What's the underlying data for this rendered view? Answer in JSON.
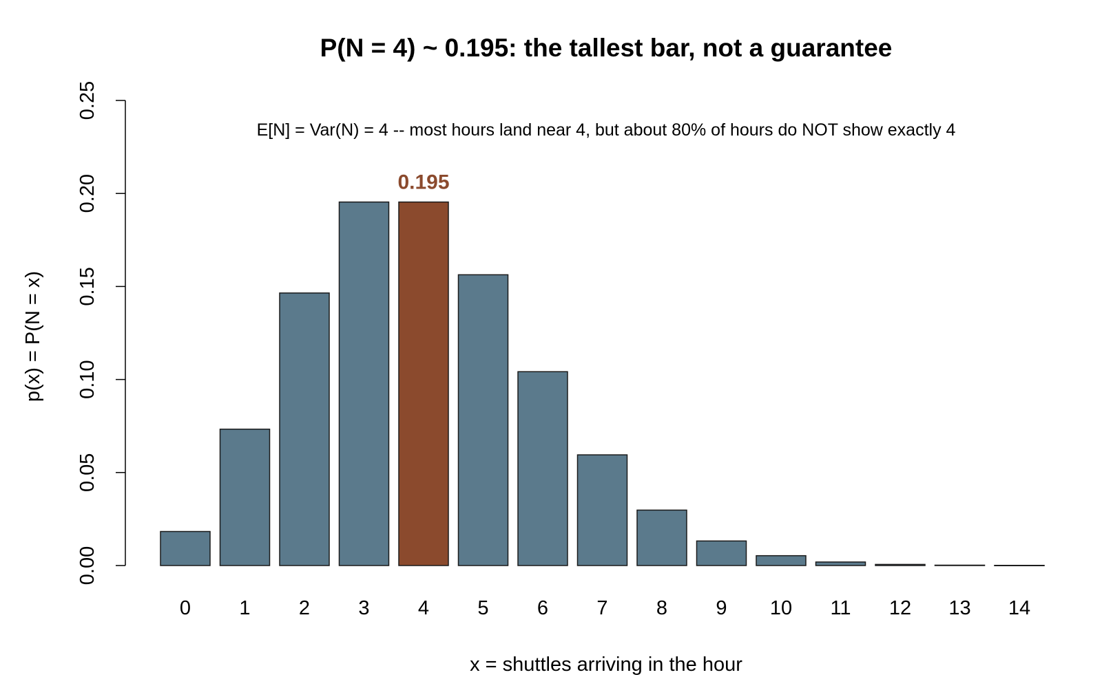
{
  "chart_data": {
    "type": "bar",
    "title": "P(N = 4) ~ 0.195: the tallest bar, not a guarantee",
    "subtitle": "E[N] = Var(N) = 4 -- most hours land near 4, but about 80% of hours do NOT show exactly 4",
    "xlabel": "x = shuttles arriving in the hour",
    "ylabel": "p(x) = P(N = x)",
    "categories": [
      "0",
      "1",
      "2",
      "3",
      "4",
      "5",
      "6",
      "7",
      "8",
      "9",
      "10",
      "11",
      "12",
      "13",
      "14"
    ],
    "values": [
      0.0183,
      0.0733,
      0.1465,
      0.1954,
      0.1954,
      0.1563,
      0.1042,
      0.0595,
      0.0298,
      0.0132,
      0.0053,
      0.0019,
      0.0006,
      0.0002,
      0.0001
    ],
    "ylim": [
      0,
      0.25
    ],
    "yticks": [
      "0.00",
      "0.05",
      "0.10",
      "0.15",
      "0.20",
      "0.25"
    ],
    "highlight_index": 4,
    "highlight_label": "0.195",
    "colors": {
      "bar": "#5b7a8c",
      "highlight": "#8b4a2d",
      "highlight_label": "#8b4a2d",
      "outline": "#1a1a1a"
    },
    "grid": false,
    "legend": "none"
  }
}
